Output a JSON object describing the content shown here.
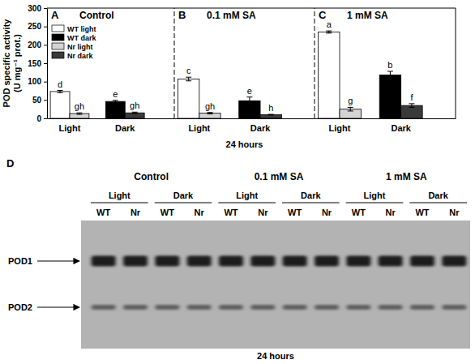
{
  "chart_data": [
    {
      "type": "bar",
      "label": "A",
      "title": "Control",
      "categories": [
        "Light",
        "Dark"
      ],
      "ylabel": [
        "POD specific activity",
        "(U mg⁻¹ prot.)"
      ],
      "ylim": [
        0,
        300
      ],
      "yticks": [
        0,
        50,
        100,
        150,
        200,
        250,
        300
      ],
      "legend": "top-left",
      "series": [
        {
          "name": "WT light",
          "color": "#ffffff",
          "values": [
            73,
            null
          ],
          "errors": [
            3,
            null
          ],
          "letters": [
            "d",
            null
          ]
        },
        {
          "name": "WT dark",
          "color": "#000000",
          "values": [
            null,
            46
          ],
          "errors": [
            null,
            3
          ],
          "letters": [
            null,
            "e"
          ]
        },
        {
          "name": "Nr light",
          "color": "#d4d4d4",
          "values": [
            13,
            null
          ],
          "errors": [
            2,
            null
          ],
          "letters": [
            "gh",
            null
          ]
        },
        {
          "name": "Nr dark",
          "color": "#3a3a3a",
          "values": [
            null,
            15
          ],
          "errors": [
            null,
            2
          ],
          "letters": [
            null,
            "gh"
          ]
        }
      ]
    },
    {
      "type": "bar",
      "label": "B",
      "title": "0.1 mM SA",
      "categories": [
        "Light",
        "Dark"
      ],
      "xlabel": "24 hours",
      "ylim": [
        0,
        300
      ],
      "tick_labels": "x",
      "series": [
        {
          "color": "#ffffff",
          "values": [
            107,
            null
          ],
          "errors": [
            5,
            null
          ],
          "letters": [
            "c",
            null
          ]
        },
        {
          "color": "#000000",
          "values": [
            null,
            48
          ],
          "errors": [
            null,
            10
          ],
          "letters": [
            null,
            "e"
          ]
        },
        {
          "color": "#d4d4d4",
          "values": [
            14,
            null
          ],
          "errors": [
            2,
            null
          ],
          "letters": [
            "gh",
            null
          ]
        },
        {
          "color": "#3a3a3a",
          "values": [
            null,
            10
          ],
          "errors": [
            null,
            1
          ],
          "letters": [
            null,
            "h"
          ]
        }
      ]
    },
    {
      "type": "bar",
      "label": "C",
      "title": "1 mM SA",
      "categories": [
        "Light",
        "Dark"
      ],
      "ylim": [
        0,
        300
      ],
      "tick_labels": "x",
      "series": [
        {
          "color": "#ffffff",
          "values": [
            235,
            null
          ],
          "errors": [
            3,
            null
          ],
          "letters": [
            "a",
            null
          ]
        },
        {
          "color": "#000000",
          "values": [
            null,
            118
          ],
          "errors": [
            null,
            10
          ],
          "letters": [
            null,
            "b"
          ]
        },
        {
          "color": "#d4d4d4",
          "values": [
            25,
            null
          ],
          "errors": [
            5,
            null
          ],
          "letters": [
            "g",
            null
          ]
        },
        {
          "color": "#3a3a3a",
          "values": [
            null,
            35
          ],
          "errors": [
            null,
            5
          ],
          "letters": [
            null,
            "f"
          ]
        }
      ]
    }
  ],
  "gel": {
    "label": "D",
    "conditions": [
      {
        "title": "Control",
        "groups": [
          {
            "title": "Light",
            "lanes": [
              "WT",
              "Nr"
            ]
          },
          {
            "title": "Dark",
            "lanes": [
              "WT",
              "Nr"
            ]
          }
        ]
      },
      {
        "title": "0.1 mM SA",
        "groups": [
          {
            "title": "Light",
            "lanes": [
              "WT",
              "Nr"
            ]
          },
          {
            "title": "Dark",
            "lanes": [
              "WT",
              "Nr"
            ]
          }
        ]
      },
      {
        "title": "1 mM SA",
        "groups": [
          {
            "title": "Light",
            "lanes": [
              "WT",
              "Nr"
            ]
          },
          {
            "title": "Dark",
            "lanes": [
              "WT",
              "Nr"
            ]
          }
        ]
      }
    ],
    "bands": [
      "POD1",
      "POD2"
    ],
    "xlabel": "24 hours"
  }
}
